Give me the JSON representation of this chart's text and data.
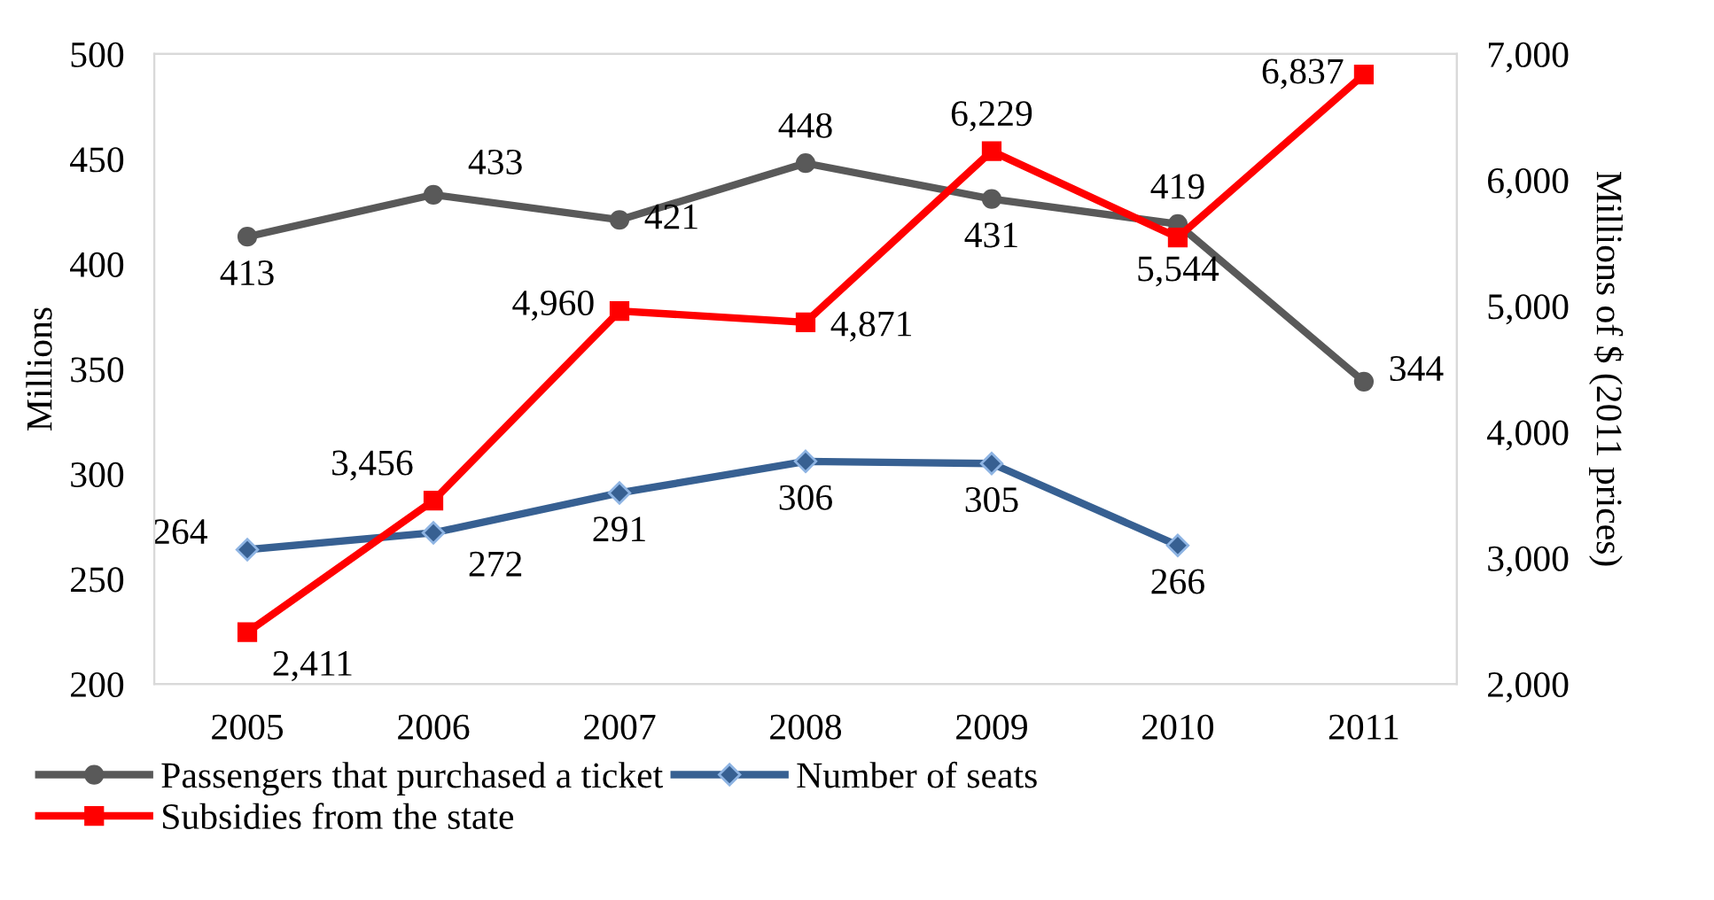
{
  "chart_data": {
    "type": "line",
    "ylabel": "Millions",
    "y2label": "Millions of $ (2011 prices)",
    "categories": [
      "2005",
      "2006",
      "2007",
      "2008",
      "2009",
      "2010",
      "2011"
    ],
    "series": [
      {
        "name": "Passengers that purchased a ticket",
        "color": "#595959",
        "marker": "circle",
        "values": [
          413,
          433,
          421,
          448,
          431,
          419,
          344
        ]
      },
      {
        "name": "Number of seats",
        "color": "#376092",
        "marker": "diamond",
        "values": [
          264,
          272,
          291,
          306,
          305,
          266,
          null
        ]
      },
      {
        "name": "Subsidies from the state",
        "color": "#ff0000",
        "marker": "square",
        "axis": "y2",
        "values": [
          2411,
          3456,
          4960,
          4871,
          6229,
          5544,
          6837
        ],
        "value_labels": [
          "2,411",
          "3,456",
          "4,960",
          "4,871",
          "6,229",
          "5,544",
          "6,837"
        ]
      }
    ],
    "ylim": [
      200,
      500
    ],
    "yticks": [
      200,
      250,
      300,
      350,
      400,
      450,
      500
    ],
    "y2lim": [
      2000,
      7000
    ],
    "y2ticks": [
      {
        "value": 2000,
        "label": "2,000"
      },
      {
        "value": 3000,
        "label": "3,000"
      },
      {
        "value": 4000,
        "label": "4,000"
      },
      {
        "value": 5000,
        "label": "5,000"
      },
      {
        "value": 6000,
        "label": "6,000"
      },
      {
        "value": 7000,
        "label": "7,000"
      }
    ],
    "data_labels": true,
    "grid": false,
    "legend": "bottom",
    "line_style": "solid"
  }
}
